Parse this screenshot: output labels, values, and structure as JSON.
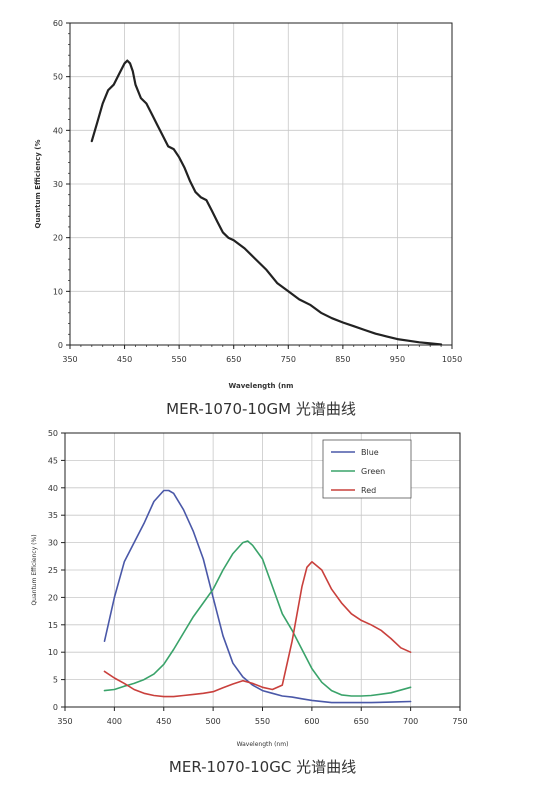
{
  "chart_data": [
    {
      "type": "line",
      "caption": "MER-1070-10GM 光谱曲线",
      "xlabel": "Wavelength (nm",
      "ylabel": "Quantum Efficiency (%",
      "xlim": [
        350,
        1050
      ],
      "ylim": [
        0,
        60
      ],
      "xticks": [
        350,
        450,
        550,
        650,
        750,
        850,
        950,
        1050
      ],
      "yticks": [
        0,
        10,
        20,
        30,
        40,
        50,
        60
      ],
      "grid": true,
      "colors": {
        "line": "#222222"
      },
      "series": [
        {
          "x": [
            390,
            400,
            410,
            420,
            430,
            440,
            450,
            455,
            460,
            465,
            470,
            480,
            490,
            500,
            510,
            520,
            530,
            540,
            550,
            560,
            570,
            580,
            590,
            600,
            610,
            620,
            630,
            640,
            650,
            670,
            690,
            710,
            730,
            750,
            770,
            790,
            810,
            830,
            850,
            870,
            890,
            910,
            930,
            950,
            970,
            990,
            1010,
            1030
          ],
          "y": [
            38,
            41.5,
            45,
            47.5,
            48.5,
            50.5,
            52.5,
            53,
            52.5,
            51,
            48.5,
            46,
            45,
            43,
            41,
            39,
            37,
            36.5,
            35,
            33,
            30.5,
            28.5,
            27.5,
            27,
            25,
            23,
            21,
            20,
            19.5,
            18,
            16,
            14,
            11.5,
            10,
            8.5,
            7.5,
            6,
            5,
            4.2,
            3.5,
            2.8,
            2.1,
            1.6,
            1.1,
            0.8,
            0.5,
            0.3,
            0.1
          ]
        }
      ]
    },
    {
      "type": "line",
      "caption": "MER-1070-10GC 光谱曲线",
      "xlabel": "Wavelength (nm)",
      "ylabel": "Quantum Efficiency (%)",
      "xlim": [
        350,
        750
      ],
      "ylim": [
        0,
        50
      ],
      "xticks": [
        350,
        400,
        450,
        500,
        550,
        600,
        650,
        700,
        750
      ],
      "yticks": [
        0,
        5,
        10,
        15,
        20,
        25,
        30,
        35,
        40,
        45,
        50
      ],
      "grid": true,
      "legend": "top-right",
      "series": [
        {
          "name": "Blue",
          "color": "#4a58a8",
          "x": [
            390,
            400,
            410,
            420,
            430,
            440,
            450,
            455,
            460,
            470,
            480,
            490,
            500,
            510,
            520,
            530,
            540,
            550,
            560,
            570,
            580,
            590,
            600,
            620,
            640,
            660,
            680,
            700
          ],
          "y": [
            12,
            20,
            26.5,
            30,
            33.5,
            37.5,
            39.5,
            39.5,
            39,
            36,
            32,
            27,
            20,
            13,
            8,
            5.5,
            4,
            3,
            2.5,
            2,
            1.8,
            1.5,
            1.2,
            0.8,
            0.8,
            0.8,
            0.9,
            1
          ]
        },
        {
          "name": "Green",
          "color": "#3aa36a",
          "x": [
            390,
            400,
            410,
            420,
            430,
            440,
            450,
            460,
            470,
            480,
            490,
            500,
            510,
            520,
            530,
            535,
            540,
            550,
            560,
            570,
            580,
            590,
            600,
            610,
            620,
            630,
            640,
            650,
            660,
            680,
            700
          ],
          "y": [
            3,
            3.2,
            3.8,
            4.3,
            5,
            6,
            7.8,
            10.5,
            13.5,
            16.5,
            19,
            21.5,
            25,
            28,
            30,
            30.3,
            29.5,
            27,
            22,
            17,
            14,
            10.5,
            7,
            4.5,
            3,
            2.2,
            2,
            2,
            2.1,
            2.6,
            3.6
          ]
        },
        {
          "name": "Red",
          "color": "#c9403c",
          "x": [
            390,
            400,
            410,
            420,
            430,
            440,
            450,
            460,
            470,
            480,
            490,
            500,
            510,
            520,
            530,
            540,
            550,
            560,
            570,
            580,
            590,
            595,
            600,
            610,
            620,
            630,
            640,
            650,
            660,
            670,
            680,
            690,
            700
          ],
          "y": [
            6.5,
            5.3,
            4.3,
            3.2,
            2.5,
            2.1,
            1.9,
            1.9,
            2.1,
            2.3,
            2.5,
            2.8,
            3.5,
            4.2,
            4.8,
            4.3,
            3.6,
            3.2,
            4,
            12,
            22,
            25.5,
            26.5,
            25,
            21.5,
            19,
            17,
            15.8,
            15,
            14,
            12.5,
            10.8,
            10
          ]
        }
      ]
    }
  ]
}
